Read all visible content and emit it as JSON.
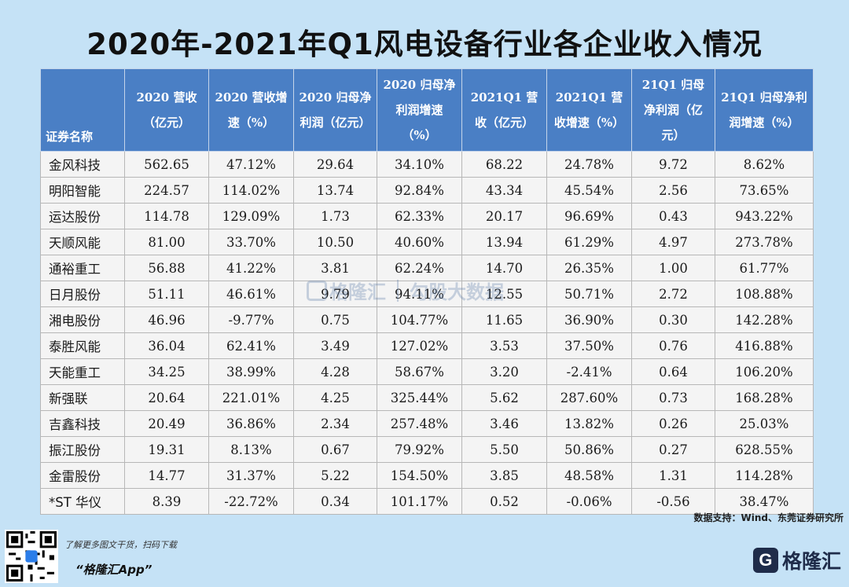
{
  "title": "2020年-2021年Q1风电设备行业各企业收入情况",
  "headers": [
    "证券名称",
    "2020 营收（亿元）",
    "2020 营收增速（%）",
    "2020 归母净利润（亿元）",
    "2020 归母净利润增速（%）",
    "2021Q1 营收（亿元）",
    "2021Q1 营收增速（%）",
    "21Q1 归母净利润（亿元）",
    "21Q1 归母净利润增速（%）"
  ],
  "rows": [
    [
      "金风科技",
      "562.65",
      "47.12%",
      "29.64",
      "34.10%",
      "68.22",
      "24.78%",
      "9.72",
      "8.62%"
    ],
    [
      "明阳智能",
      "224.57",
      "114.02%",
      "13.74",
      "92.84%",
      "43.34",
      "45.54%",
      "2.56",
      "73.65%"
    ],
    [
      "运达股份",
      "114.78",
      "129.09%",
      "1.73",
      "62.33%",
      "20.17",
      "96.69%",
      "0.43",
      "943.22%"
    ],
    [
      "天顺风能",
      "81.00",
      "33.70%",
      "10.50",
      "40.60%",
      "13.94",
      "61.29%",
      "4.97",
      "273.78%"
    ],
    [
      "通裕重工",
      "56.88",
      "41.22%",
      "3.81",
      "62.24%",
      "14.70",
      "26.35%",
      "1.00",
      "61.77%"
    ],
    [
      "日月股份",
      "51.11",
      "46.61%",
      "9.79",
      "94.11%",
      "12.55",
      "50.71%",
      "2.72",
      "108.88%"
    ],
    [
      "湘电股份",
      "46.96",
      "-9.77%",
      "0.75",
      "104.77%",
      "11.65",
      "36.90%",
      "0.30",
      "142.28%"
    ],
    [
      "泰胜风能",
      "36.04",
      "62.41%",
      "3.49",
      "127.02%",
      "3.53",
      "37.50%",
      "0.76",
      "416.88%"
    ],
    [
      "天能重工",
      "34.25",
      "38.99%",
      "4.28",
      "58.67%",
      "3.20",
      "-2.41%",
      "0.64",
      "106.20%"
    ],
    [
      "新强联",
      "20.64",
      "221.01%",
      "4.25",
      "325.44%",
      "5.62",
      "287.60%",
      "0.73",
      "168.28%"
    ],
    [
      "吉鑫科技",
      "20.49",
      "36.86%",
      "2.34",
      "257.48%",
      "3.46",
      "13.82%",
      "0.26",
      "25.03%"
    ],
    [
      "振江股份",
      "19.31",
      "8.13%",
      "0.67",
      "79.92%",
      "5.50",
      "50.86%",
      "0.27",
      "628.55%"
    ],
    [
      "金雷股份",
      "14.77",
      "31.37%",
      "5.22",
      "154.50%",
      "3.85",
      "48.58%",
      "1.31",
      "114.28%"
    ],
    [
      "*ST 华仪",
      "8.39",
      "-22.72%",
      "0.34",
      "101.17%",
      "0.52",
      "-0.06%",
      "-0.56",
      "38.47%"
    ]
  ],
  "source": "数据支持：Wind、东莞证券研究所",
  "promo_line1": "了解更多图文干货，扫码下载",
  "promo_line2": "“格隆汇App”",
  "brand_name": "格隆汇",
  "brand_icon": "G",
  "watermark_a": "格隆汇",
  "watermark_b": "勾股大数据",
  "colors": {
    "background": "#c5e2f6",
    "header": "#4a7fc5",
    "cell": "#f4f4f4"
  }
}
